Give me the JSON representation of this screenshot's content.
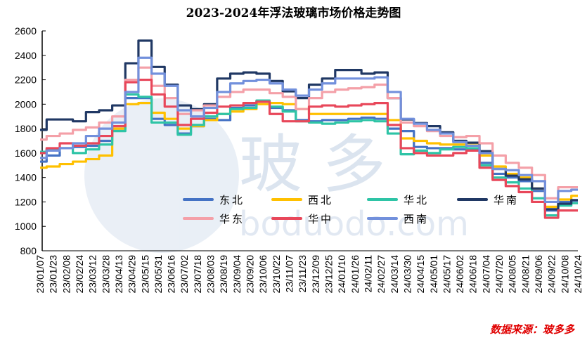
{
  "chart_data": {
    "type": "line",
    "title": "2023-2024年浮法玻璃市场价格走势图",
    "source": "数据来源：玻多多",
    "watermark": "玻多 boduodo.com",
    "xlabel": "",
    "ylabel": "",
    "ylim": [
      800,
      2600
    ],
    "yticks": [
      800,
      1000,
      1200,
      1400,
      1600,
      1800,
      2000,
      2200,
      2400,
      2600
    ],
    "grid": false,
    "legend_position": "bottom-center-inside",
    "x": [
      "23/01/07",
      "23/01/23",
      "23/02/08",
      "23/02/24",
      "23/03/12",
      "23/03/28",
      "23/04/13",
      "23/04/29",
      "23/05/15",
      "23/05/31",
      "23/06/16",
      "23/07/02",
      "23/07/18",
      "23/08/03",
      "23/08/19",
      "23/09/04",
      "23/09/20",
      "23/10/06",
      "23/10/22",
      "23/11/07",
      "23/11/23",
      "23/12/09",
      "23/12/25",
      "24/01/10",
      "24/01/26",
      "24/02/11",
      "24/02/27",
      "24/03/14",
      "24/03/30",
      "24/04/15",
      "24/05/01",
      "24/05/17",
      "24/06/02",
      "24/06/18",
      "24/07/04",
      "24/07/20",
      "24/08/05",
      "24/08/21",
      "24/09/06",
      "24/09/22",
      "24/10/08",
      "24/10/24"
    ],
    "series": [
      {
        "name": "东北",
        "color": "#4472C4",
        "values": [
          1530,
          1580,
          1640,
          1650,
          1660,
          1700,
          1800,
          2050,
          2050,
          1880,
          1830,
          1760,
          1820,
          1880,
          1870,
          1970,
          1990,
          2020,
          1970,
          1950,
          1870,
          1860,
          1870,
          1870,
          1880,
          1890,
          1880,
          1800,
          1780,
          1650,
          1640,
          1640,
          1630,
          1630,
          1520,
          1430,
          1400,
          1370,
          1290,
          1130,
          1200,
          1210
        ]
      },
      {
        "name": "西北",
        "color": "#FFC000",
        "values": [
          1480,
          1490,
          1510,
          1530,
          1550,
          1580,
          1800,
          2000,
          2010,
          1930,
          1880,
          1800,
          1820,
          1870,
          1920,
          1940,
          1960,
          2000,
          2010,
          2000,
          1960,
          1920,
          1920,
          1920,
          1920,
          1920,
          1920,
          1870,
          1720,
          1700,
          1680,
          1670,
          1670,
          1680,
          1580,
          1490,
          1430,
          1400,
          1310,
          1160,
          1220,
          1250
        ]
      },
      {
        "name": "华北",
        "color": "#2EC4A6",
        "values": [
          1610,
          1630,
          1640,
          1600,
          1630,
          1670,
          1780,
          2080,
          2060,
          1850,
          1850,
          1750,
          1830,
          1900,
          1920,
          1960,
          1970,
          2030,
          1980,
          1940,
          1860,
          1850,
          1840,
          1850,
          1860,
          1870,
          1860,
          1760,
          1590,
          1620,
          1600,
          1630,
          1650,
          1640,
          1500,
          1400,
          1360,
          1310,
          1230,
          1090,
          1170,
          1190
        ]
      },
      {
        "name": "华南",
        "color": "#203864",
        "values": [
          1790,
          1875,
          1875,
          1860,
          1935,
          1950,
          1990,
          2335,
          2520,
          2305,
          2160,
          1990,
          1960,
          2000,
          2210,
          2250,
          2260,
          2250,
          2190,
          2105,
          2050,
          2160,
          2210,
          2280,
          2280,
          2250,
          2260,
          2050,
          1875,
          1845,
          1820,
          1770,
          1700,
          1685,
          1615,
          1470,
          1415,
          1385,
          1310,
          1140,
          1185,
          1215
        ]
      },
      {
        "name": "华东",
        "color": "#F4A0A8",
        "values": [
          1710,
          1740,
          1760,
          1790,
          1810,
          1850,
          1900,
          2200,
          2300,
          2150,
          2050,
          1920,
          1950,
          1990,
          2060,
          2100,
          2120,
          2120,
          2090,
          2060,
          1960,
          2050,
          2100,
          2120,
          2130,
          2140,
          2160,
          2050,
          1850,
          1820,
          1780,
          1740,
          1730,
          1740,
          1680,
          1580,
          1520,
          1480,
          1420,
          1230,
          1320,
          1320
        ]
      },
      {
        "name": "华中",
        "color": "#E8475A",
        "values": [
          1600,
          1640,
          1680,
          1660,
          1680,
          1740,
          1820,
          2180,
          2200,
          2080,
          1980,
          1830,
          1880,
          1930,
          1980,
          1990,
          2010,
          2020,
          1920,
          1860,
          1860,
          1980,
          1990,
          1980,
          1990,
          2000,
          2010,
          1830,
          1640,
          1600,
          1580,
          1580,
          1600,
          1620,
          1480,
          1380,
          1330,
          1280,
          1200,
          1070,
          1130,
          1130
        ]
      },
      {
        "name": "西南",
        "color": "#7290DC",
        "values": [
          1560,
          1620,
          1640,
          1680,
          1740,
          1800,
          1850,
          2100,
          2380,
          2250,
          2150,
          1950,
          1900,
          1970,
          2100,
          2170,
          2190,
          2200,
          2170,
          2120,
          2070,
          2120,
          2170,
          2210,
          2210,
          2210,
          2220,
          2100,
          1880,
          1840,
          1790,
          1760,
          1690,
          1660,
          1600,
          1470,
          1460,
          1420,
          1370,
          1200,
          1290,
          1300
        ]
      }
    ]
  }
}
